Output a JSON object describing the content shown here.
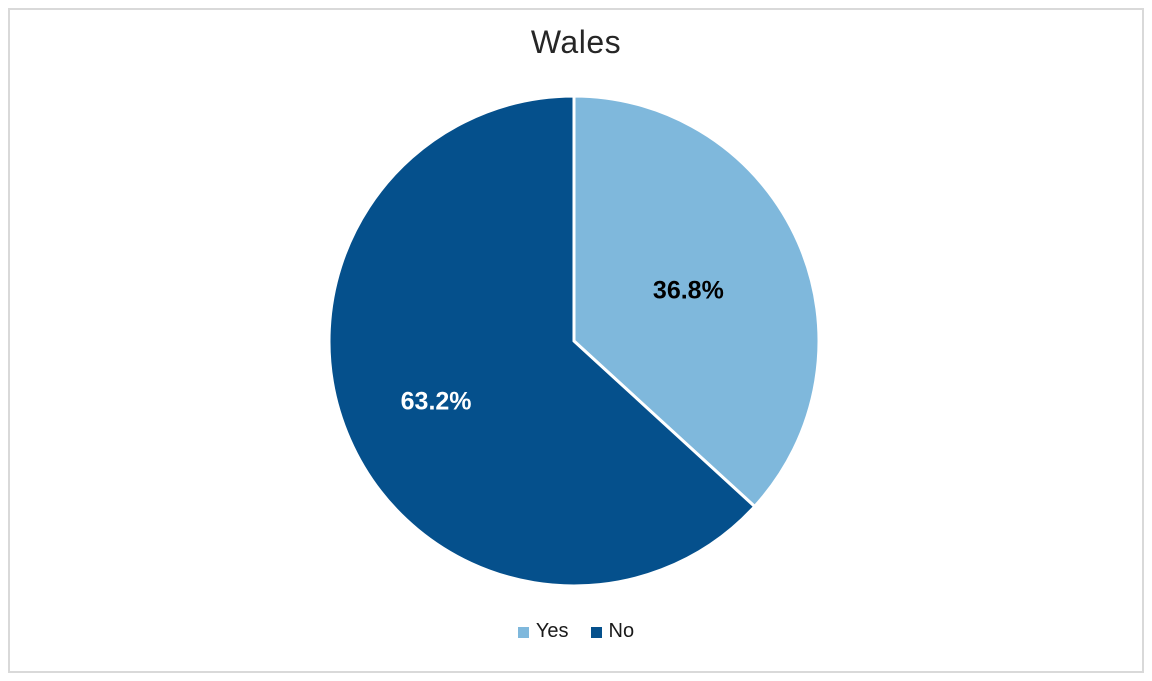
{
  "window": {
    "background": "#FFFFFF",
    "frame_border_color": "#D9D9D9"
  },
  "chart_data": {
    "type": "pie",
    "title": "Wales",
    "title_color": "#262626",
    "categories": [
      "Yes",
      "No"
    ],
    "values": [
      36.8,
      63.2
    ],
    "slices": [
      {
        "label": "Yes",
        "value": 36.8,
        "display_label": "36.8%",
        "color": "#7FB8DC",
        "label_text_color": "#000000"
      },
      {
        "label": "No",
        "value": 63.2,
        "display_label": "63.2%",
        "color": "#05508C",
        "label_text_color": "#FFFFFF"
      }
    ],
    "start_angle_deg": 0,
    "direction": "clockwise",
    "data_labels": "percentage",
    "slice_border_color": "#FFFFFF",
    "legend_position": "bottom"
  }
}
